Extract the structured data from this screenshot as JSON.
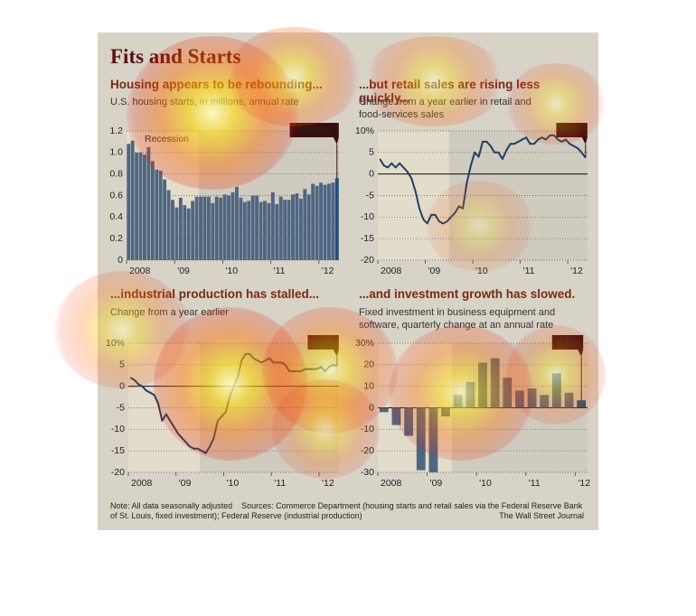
{
  "header": {
    "title": "Fits and Starts"
  },
  "footer": {
    "note": "Note: All data seasonally adjusted",
    "source": "Sources: Commerce Department (housing starts and retail sales via the Federal Reserve Bank of St. Louis, fixed investment); Federal Reserve (industrial production)",
    "credit": "The Wall Street Journal"
  },
  "chart_data": [
    {
      "type": "bar",
      "title": "Housing appears to be rebounding...",
      "subtitle": "U.S. housing starts, in millions, annual rate",
      "categories": [
        "2008",
        null,
        null,
        null,
        null,
        null,
        null,
        null,
        null,
        null,
        null,
        null,
        "'09",
        null,
        null,
        null,
        null,
        null,
        null,
        null,
        null,
        null,
        null,
        null,
        "'10",
        null,
        null,
        null,
        null,
        null,
        null,
        null,
        null,
        null,
        null,
        null,
        "'11",
        null,
        null,
        null,
        null,
        null,
        null,
        null,
        null,
        null,
        null,
        null,
        "'12",
        null,
        null,
        null,
        null
      ],
      "values": [
        1.08,
        1.11,
        1.0,
        1.0,
        0.98,
        1.05,
        0.92,
        0.84,
        0.83,
        0.75,
        0.65,
        0.56,
        0.49,
        0.58,
        0.51,
        0.48,
        0.55,
        0.59,
        0.59,
        0.59,
        0.59,
        0.53,
        0.59,
        0.58,
        0.61,
        0.6,
        0.63,
        0.68,
        0.58,
        0.54,
        0.55,
        0.6,
        0.6,
        0.54,
        0.55,
        0.53,
        0.63,
        0.52,
        0.59,
        0.56,
        0.56,
        0.61,
        0.62,
        0.57,
        0.66,
        0.61,
        0.71,
        0.69,
        0.72,
        0.7,
        0.71,
        0.72,
        0.76
      ],
      "value_labels": [
        null,
        null,
        null,
        null,
        null,
        null,
        null,
        null,
        null,
        null,
        null,
        null,
        null,
        null,
        null,
        null,
        null,
        null,
        null,
        null,
        null,
        null,
        null,
        null,
        null,
        null,
        null,
        null,
        null,
        null,
        null,
        null,
        null,
        null,
        null,
        null,
        null,
        null,
        null,
        null,
        null,
        null,
        null,
        null,
        null,
        null,
        null,
        null,
        null,
        null,
        null,
        null,
        "760,000"
      ],
      "color": "#4d6783",
      "highlight_color": "#1d4f80",
      "ylim": [
        0,
        1.2
      ],
      "yticks": [
        0,
        0.2,
        0.4,
        0.6,
        0.8,
        {
          "value": 1,
          "label": "1.0"
        },
        1.2
      ],
      "grid": true,
      "recession": {
        "label": "Recession",
        "end": 17
      }
    },
    {
      "type": "line",
      "title": "...but retail sales are rising less quickly...",
      "subtitle": "Change from a year earlier in retail and food-services sales",
      "categories": [
        "2008",
        null,
        null,
        null,
        null,
        null,
        null,
        null,
        null,
        null,
        null,
        null,
        "'09",
        null,
        null,
        null,
        null,
        null,
        null,
        null,
        null,
        null,
        null,
        null,
        "'10",
        null,
        null,
        null,
        null,
        null,
        null,
        null,
        null,
        null,
        null,
        null,
        "'11",
        null,
        null,
        null,
        null,
        null,
        null,
        null,
        null,
        null,
        null,
        null,
        "'12",
        null,
        null,
        null,
        null
      ],
      "values": [
        3.5,
        2,
        1.5,
        2.5,
        1.5,
        2.5,
        1.5,
        0.5,
        -1,
        -4,
        -8,
        -10.5,
        -11.5,
        -9.5,
        -9.5,
        -11,
        -11.5,
        -11,
        -10,
        -9,
        -7.5,
        -8,
        -2,
        2,
        5,
        4,
        7.5,
        7.5,
        6.5,
        5,
        5,
        3.5,
        5.5,
        7,
        7,
        7.5,
        8,
        8.5,
        7,
        7,
        8,
        8.5,
        8,
        9,
        9,
        8,
        7.5,
        8,
        7,
        6.5,
        6,
        5,
        3.8
      ],
      "value_labels": [
        null,
        null,
        null,
        null,
        null,
        null,
        null,
        null,
        null,
        null,
        null,
        null,
        null,
        null,
        null,
        null,
        null,
        null,
        null,
        null,
        null,
        null,
        null,
        null,
        null,
        null,
        null,
        null,
        null,
        null,
        null,
        null,
        null,
        null,
        null,
        null,
        null,
        null,
        null,
        null,
        null,
        null,
        null,
        null,
        null,
        null,
        null,
        null,
        null,
        null,
        null,
        null,
        "3.8%"
      ],
      "color": "#1c3f66",
      "ylim": [
        -20,
        10
      ],
      "yticks": [
        -20,
        -15,
        -10,
        -5,
        0,
        5,
        {
          "value": 10,
          "label": "10%"
        }
      ],
      "grid": true,
      "recession": {
        "end": 17
      }
    },
    {
      "type": "line",
      "title": "...industrial production has stalled...",
      "subtitle": "Change from a year earlier",
      "categories": [
        "2008",
        null,
        null,
        null,
        null,
        null,
        null,
        null,
        null,
        null,
        null,
        null,
        "'09",
        null,
        null,
        null,
        null,
        null,
        null,
        null,
        null,
        null,
        null,
        null,
        "'10",
        null,
        null,
        null,
        null,
        null,
        null,
        null,
        null,
        null,
        null,
        null,
        "'11",
        null,
        null,
        null,
        null,
        null,
        null,
        null,
        null,
        null,
        null,
        null,
        "'12",
        null,
        null,
        null,
        null
      ],
      "values": [
        2,
        1.5,
        0.5,
        0,
        -1,
        -1.5,
        -2,
        -4,
        -8,
        -6.5,
        -8,
        -9.5,
        -11,
        -12,
        -13,
        -14,
        -14.5,
        -14.5,
        -15,
        -15.5,
        -14,
        -12,
        -8,
        -7,
        -6,
        -2.5,
        0,
        2,
        6,
        7.5,
        7.5,
        6.5,
        6,
        5.5,
        6,
        6.5,
        5.5,
        5.5,
        5.5,
        5,
        3.5,
        3.5,
        3.5,
        3.5,
        4,
        4,
        4,
        4,
        4.5,
        3.5,
        4.5,
        5,
        4.7
      ],
      "value_labels": [
        null,
        null,
        null,
        null,
        null,
        null,
        null,
        null,
        null,
        null,
        null,
        null,
        null,
        null,
        null,
        null,
        null,
        null,
        null,
        null,
        null,
        null,
        null,
        null,
        null,
        null,
        null,
        null,
        null,
        null,
        null,
        null,
        null,
        null,
        null,
        null,
        null,
        null,
        null,
        null,
        null,
        null,
        null,
        null,
        null,
        null,
        null,
        null,
        null,
        null,
        null,
        null,
        "4.7%"
      ],
      "color": "#1c3f66",
      "ylim": [
        -20,
        10
      ],
      "yticks": [
        -20,
        -15,
        -10,
        -5,
        0,
        5,
        {
          "value": 10,
          "label": "10%"
        }
      ],
      "grid": true,
      "recession": {
        "end": 17
      }
    },
    {
      "type": "bar",
      "title": "...and investment growth has slowed.",
      "subtitle": "Fixed investment in business equipment and software, quarterly change at an annual rate",
      "categories": [
        "2008",
        null,
        null,
        null,
        "'09",
        null,
        null,
        null,
        "'10",
        null,
        null,
        null,
        "'11",
        null,
        null,
        null,
        "'12"
      ],
      "values": [
        -2,
        -8,
        -13,
        -29,
        -30,
        -4,
        6,
        12,
        21,
        23,
        14,
        8,
        9,
        6,
        16,
        7,
        3.5
      ],
      "value_labels": [
        null,
        null,
        null,
        null,
        null,
        null,
        null,
        null,
        null,
        null,
        null,
        null,
        null,
        null,
        null,
        null,
        "3.5%"
      ],
      "color": "#4d6783",
      "highlight_color": "#1d4f80",
      "ylim": [
        -30,
        30
      ],
      "yticks": [
        -30,
        -20,
        -10,
        0,
        10,
        20,
        {
          "value": 30,
          "label": "30%"
        }
      ],
      "grid": true,
      "recession": {
        "end": 5
      }
    }
  ]
}
